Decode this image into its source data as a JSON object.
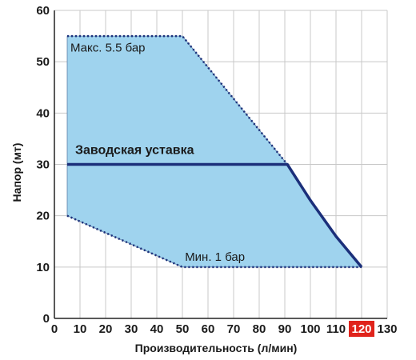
{
  "chart_data": {
    "type": "area",
    "xlabel": "Производительность (л/мин)",
    "ylabel": "Напор (мт)",
    "xlim": [
      0,
      130
    ],
    "ylim": [
      0,
      60
    ],
    "x_ticks": [
      0,
      10,
      20,
      30,
      40,
      50,
      60,
      70,
      80,
      90,
      100,
      110,
      120,
      130
    ],
    "y_ticks": [
      0,
      10,
      20,
      30,
      40,
      50,
      60
    ],
    "highlighted_x_tick": 120,
    "highlight_color": "#e0231b",
    "grid": true,
    "operating_region": {
      "fill": "#9fd3ee",
      "upper_boundary": {
        "label": "Макс. 5.5 бар",
        "style": "dotted",
        "x": [
          5,
          50,
          91
        ],
        "y": [
          55,
          55,
          30
        ]
      },
      "lower_boundary": {
        "label": "Мин. 1 бар",
        "style": "dotted",
        "x": [
          5,
          50,
          120
        ],
        "y": [
          20,
          10,
          10
        ]
      },
      "left_edge_x": 5
    },
    "series": [
      {
        "label": "Заводская уставка",
        "style": "solid",
        "color": "#1b2f7a",
        "x": [
          5,
          91,
          100,
          110,
          115,
          120
        ],
        "y": [
          30,
          30,
          23,
          16,
          13,
          10
        ]
      }
    ]
  }
}
